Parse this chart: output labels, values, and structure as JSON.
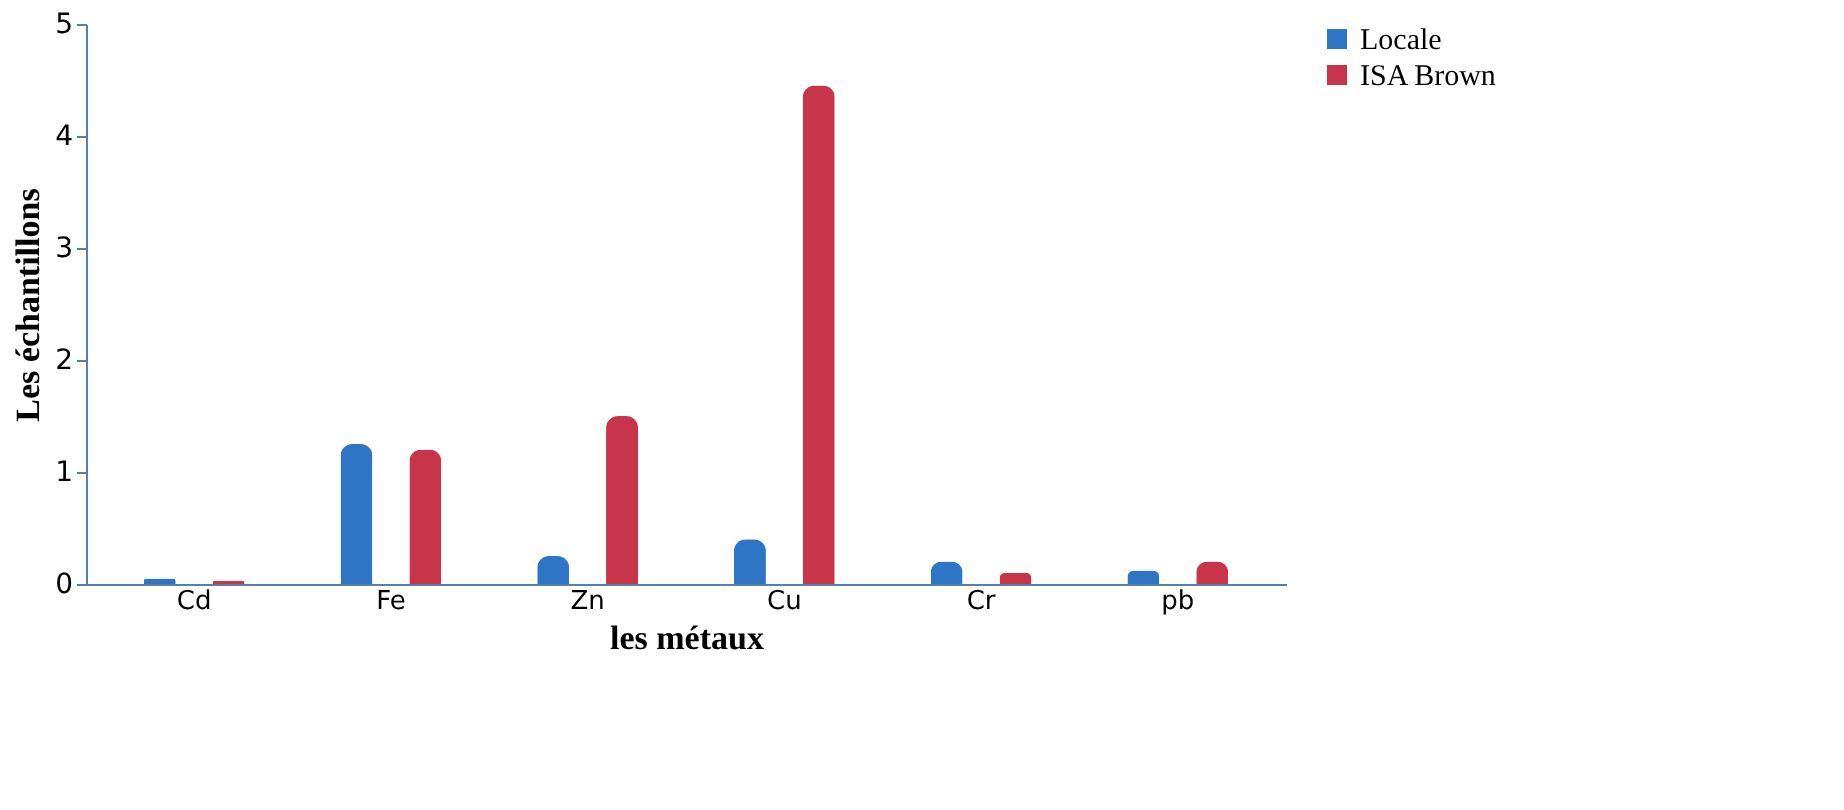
{
  "chart_data": {
    "type": "bar",
    "xlabel": "les métaux",
    "ylabel": "Les échantillons",
    "categories": [
      "Cd",
      "Fe",
      "Zn",
      "Cu",
      "Cr",
      "pb"
    ],
    "series": [
      {
        "name": "Locale",
        "color": "#2e75c6",
        "values": [
          0.05,
          1.25,
          0.25,
          0.4,
          0.2,
          0.12
        ]
      },
      {
        "name": "ISA Brown",
        "color": "#c8344a",
        "values": [
          0.03,
          1.2,
          1.5,
          4.45,
          0.1,
          0.2
        ]
      }
    ],
    "ylim": [
      0,
      5
    ],
    "yticks": [
      0,
      1,
      2,
      3,
      4,
      5
    ],
    "grid": false,
    "legend": "right"
  }
}
